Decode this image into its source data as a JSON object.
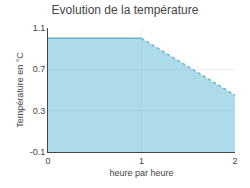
{
  "chart_data": {
    "type": "area",
    "title": "Evolution de la température",
    "xlabel": "heure par heure",
    "ylabel": "Température en °C",
    "x": [
      0,
      1,
      2
    ],
    "values": [
      1.0,
      1.0,
      0.45
    ],
    "color": "#5bb8d4",
    "line_style": "dotted",
    "xlim": [
      0,
      2
    ],
    "ylim": [
      -0.1,
      1.1
    ],
    "xticks": [
      0,
      1,
      2
    ],
    "yticks": [
      -0.1,
      0.3,
      0.7,
      1.1
    ],
    "grid": true
  }
}
